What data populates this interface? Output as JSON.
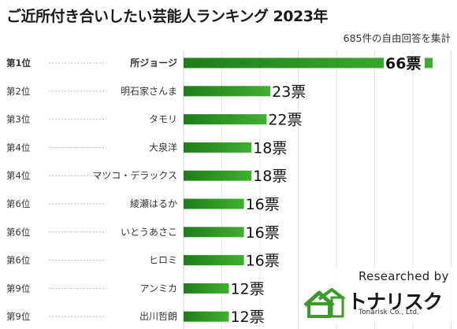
{
  "header": {
    "title": "ご近所付き合いしたい芸能人ランキング 2023年",
    "subtitle": "685件の自由回答を集計"
  },
  "chart_data": {
    "type": "bar",
    "orientation": "horizontal",
    "title": "ご近所付き合いしたい芸能人ランキング 2023年",
    "subtitle": "685件の自由回答を集計",
    "unit": "票",
    "xlim": [
      0,
      70
    ],
    "grid": true,
    "categories": [
      "所ジョージ",
      "明石家さんま",
      "タモリ",
      "大泉洋",
      "マツコ・デラックス",
      "綾瀬はるか",
      "いとうあさこ",
      "ヒロミ",
      "アンミカ",
      "出川哲朗"
    ],
    "ranks": [
      "第1位",
      "第2位",
      "第3位",
      "第4位",
      "第4位",
      "第6位",
      "第6位",
      "第6位",
      "第9位",
      "第9位"
    ],
    "values": [
      66,
      23,
      22,
      18,
      18,
      16,
      16,
      16,
      12,
      12
    ],
    "value_labels": [
      "66票",
      "23票",
      "22票",
      "18票",
      "18票",
      "16票",
      "16票",
      "16票",
      "12票",
      "12票"
    ],
    "bar_color": "#3a9a2a"
  },
  "watermark": {
    "researched_by": "Researched by",
    "logo": "トナリスク",
    "logo_sub": "Tonarisk Co., Ltd."
  }
}
